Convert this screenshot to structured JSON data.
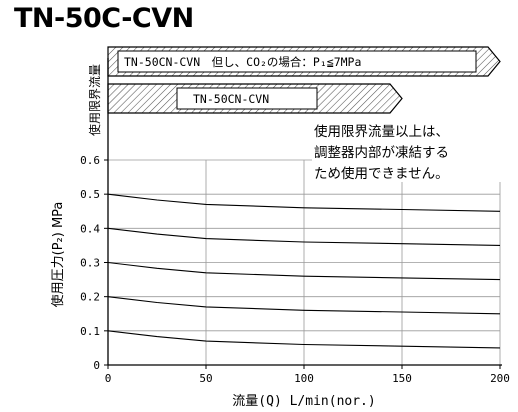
{
  "page": {
    "title": "TN-50C-CVN"
  },
  "limit_section": {
    "label": "使用限界流量",
    "arrows": [
      {
        "label": "TN-50CN-CVN　但し、CO₂の場合：P₁≦7MPa",
        "limit_flow": 200
      },
      {
        "label": "TN-50CN-CVN",
        "limit_flow": 150
      }
    ]
  },
  "note": {
    "lines": [
      "使用限界流量以上は、",
      "調整器内部が凍結する",
      "ため使用できません。"
    ]
  },
  "chart_data": {
    "type": "line",
    "title": "",
    "xlabel": "流量(Q) L/min(nor.)",
    "ylabel": "使用圧力(P₂) MPa",
    "xlim": [
      0,
      200
    ],
    "ylim": [
      0,
      0.6
    ],
    "x_ticks": [
      0,
      50,
      100,
      150,
      200
    ],
    "y_ticks": [
      0,
      0.1,
      0.2,
      0.3,
      0.4,
      0.5,
      0.6
    ],
    "x_tick_labels": [
      "0",
      "50",
      "100",
      "150",
      "200"
    ],
    "y_tick_labels": [
      "0",
      "0.1",
      "0.2",
      "0.3",
      "0.4",
      "0.5",
      "0.6"
    ],
    "grid": true,
    "series": [
      {
        "x": [
          0,
          25,
          50,
          100,
          150,
          200
        ],
        "y": [
          0.5,
          0.483,
          0.47,
          0.46,
          0.455,
          0.45
        ]
      },
      {
        "x": [
          0,
          25,
          50,
          100,
          150,
          200
        ],
        "y": [
          0.4,
          0.383,
          0.37,
          0.36,
          0.355,
          0.35
        ]
      },
      {
        "x": [
          0,
          25,
          50,
          100,
          150,
          200
        ],
        "y": [
          0.3,
          0.283,
          0.27,
          0.26,
          0.255,
          0.25
        ]
      },
      {
        "x": [
          0,
          25,
          50,
          100,
          150,
          200
        ],
        "y": [
          0.2,
          0.183,
          0.17,
          0.16,
          0.155,
          0.15
        ]
      },
      {
        "x": [
          0,
          25,
          50,
          100,
          150,
          200
        ],
        "y": [
          0.1,
          0.083,
          0.07,
          0.06,
          0.055,
          0.05
        ]
      }
    ]
  }
}
